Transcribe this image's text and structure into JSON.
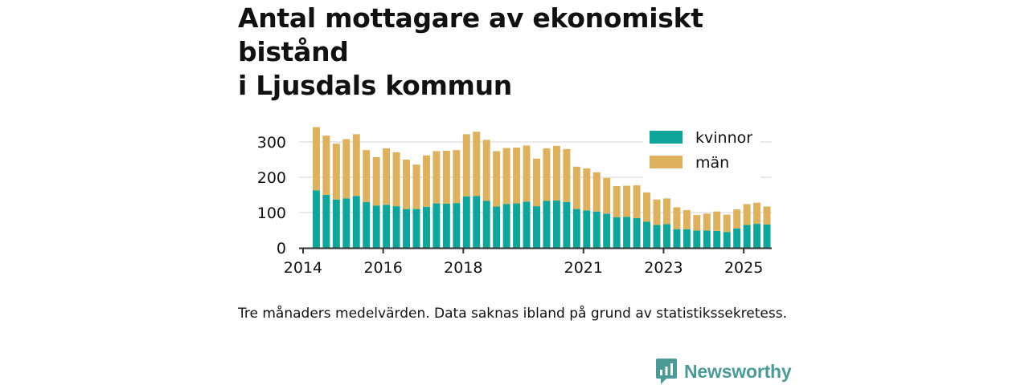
{
  "title": {
    "line1": "Antal mottagare av ekonomiskt bistånd",
    "line2": "i Ljusdals kommun"
  },
  "caption": "Tre månaders medelvärden. Data saknas ibland på grund av statistikssekretess.",
  "brand": {
    "name": "Newsworthy",
    "icon": "bar-chart-speech-icon"
  },
  "colors": {
    "kvinnor": "#0fa59b",
    "man": "#ddb15e",
    "grid": "#dddddd",
    "axis": "#333333",
    "brand": "#4c9a96"
  },
  "chart_data": {
    "type": "bar",
    "stacked": true,
    "title": "Antal mottagare av ekonomiskt bistånd i Ljusdals kommun",
    "xlabel": "",
    "ylabel": "",
    "ylim": [
      0,
      350
    ],
    "yticks": [
      0,
      100,
      200,
      300
    ],
    "x_range": [
      2013.9,
      2025.7
    ],
    "xticks": [
      {
        "label": "2014",
        "x": 2014.0
      },
      {
        "label": "2016",
        "x": 2016.0
      },
      {
        "label": "2018",
        "x": 2018.0
      },
      {
        "label": "2021",
        "x": 2021.0
      },
      {
        "label": "2023",
        "x": 2023.0
      },
      {
        "label": "2025",
        "x": 2025.0
      }
    ],
    "legend": {
      "position": "top-right",
      "entries": [
        "kvinnor",
        "män"
      ]
    },
    "x": [
      2014.33,
      2014.58,
      2014.83,
      2015.08,
      2015.33,
      2015.58,
      2015.83,
      2016.08,
      2016.33,
      2016.58,
      2016.83,
      2017.08,
      2017.33,
      2017.58,
      2017.83,
      2018.08,
      2018.33,
      2018.58,
      2018.83,
      2019.08,
      2019.33,
      2019.58,
      2019.83,
      2020.08,
      2020.33,
      2020.58,
      2020.83,
      2021.08,
      2021.33,
      2021.58,
      2021.83,
      2022.08,
      2022.33,
      2022.58,
      2022.83,
      2023.08,
      2023.33,
      2023.58,
      2023.83,
      2024.08,
      2024.33,
      2024.58,
      2024.83,
      2025.08,
      2025.33,
      2025.58
    ],
    "series": [
      {
        "name": "kvinnor",
        "values": [
          163,
          150,
          137,
          140,
          147,
          130,
          120,
          122,
          118,
          110,
          110,
          116,
          126,
          125,
          127,
          146,
          147,
          133,
          117,
          124,
          126,
          131,
          118,
          133,
          134,
          130,
          110,
          106,
          103,
          97,
          87,
          88,
          84,
          74,
          65,
          67,
          53,
          53,
          49,
          49,
          48,
          45,
          55,
          65,
          68,
          66
        ]
      },
      {
        "name": "män",
        "values": [
          179,
          168,
          158,
          168,
          175,
          147,
          137,
          160,
          153,
          140,
          126,
          146,
          148,
          150,
          150,
          176,
          182,
          173,
          157,
          159,
          158,
          159,
          135,
          149,
          155,
          150,
          120,
          119,
          111,
          101,
          88,
          88,
          93,
          83,
          72,
          73,
          62,
          54,
          44,
          48,
          55,
          49,
          54,
          59,
          60,
          51
        ]
      }
    ]
  }
}
